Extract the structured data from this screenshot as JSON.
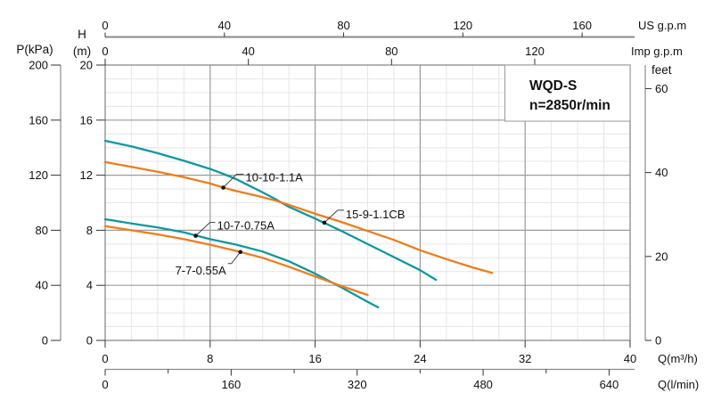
{
  "title_box": {
    "line1": "WQD-S",
    "line2": "n=2850r/min"
  },
  "axis_labels": {
    "p_unit": "P(kPa)",
    "h_letter": "H",
    "h_unit": "(m)",
    "us_gpm": "US g.p.m",
    "imp_gpm": "Imp g.p.m",
    "feet": "feet",
    "q_m3h": "Q(m³/h)",
    "q_lmin": "Q(l/min)"
  },
  "colors": {
    "teal": "#0e98a0",
    "orange": "#ee7d1b",
    "grid_minor": "#e6e6e6",
    "grid_major": "#9b9b9b",
    "axis_line": "#8a8a8a",
    "tick": "#333333",
    "text": "#111111",
    "leader": "#444444"
  },
  "chart_data": {
    "type": "line",
    "title": "WQD-S n=2850r/min",
    "xlim_m3h": [
      0,
      40
    ],
    "ylim_m": [
      0,
      20
    ],
    "grid": {
      "minor_x_step": 2,
      "major_x_step": 8,
      "minor_y_step": 1,
      "major_y_step": 4,
      "grid_on": true
    },
    "x_axes": [
      {
        "name": "US g.p.m",
        "ticks": [
          0,
          40,
          80,
          120,
          160
        ],
        "to_m3h": 0.227125
      },
      {
        "name": "Imp g.p.m",
        "ticks": [
          0,
          40,
          80,
          120
        ],
        "to_m3h": 0.272766
      },
      {
        "name": "Q(m³/h)",
        "ticks": [
          0,
          8,
          16,
          24,
          32,
          40
        ],
        "to_m3h": 1
      },
      {
        "name": "Q(l/min)",
        "ticks": [
          0,
          160,
          320,
          480,
          640
        ],
        "minor_ticks": [
          80,
          240,
          400,
          560
        ],
        "to_m3h": 0.06
      }
    ],
    "y_axes": [
      {
        "name": "P(kPa)",
        "ticks": [
          200,
          160,
          120,
          80,
          40,
          0
        ],
        "to_m": 0.1
      },
      {
        "name": "H(m)",
        "ticks": [
          20,
          16,
          12,
          8,
          4,
          0
        ],
        "to_m": 1
      },
      {
        "name": "feet",
        "ticks": [
          60,
          40,
          20,
          0
        ],
        "to_m": 0.3048
      }
    ],
    "series": [
      {
        "name": "15-9-1.1CB",
        "color_key": "teal",
        "points": [
          [
            0,
            14.5
          ],
          [
            2,
            14.1
          ],
          [
            4,
            13.6
          ],
          [
            6,
            13.05
          ],
          [
            8,
            12.45
          ],
          [
            9,
            12.1
          ],
          [
            10,
            11.7
          ],
          [
            12,
            10.75
          ],
          [
            13,
            10.25
          ],
          [
            14,
            9.7
          ],
          [
            16,
            8.85
          ],
          [
            17,
            8.4
          ],
          [
            18,
            7.95
          ],
          [
            20,
            7.0
          ],
          [
            22,
            6.05
          ],
          [
            24,
            5.1
          ],
          [
            25.2,
            4.4
          ]
        ]
      },
      {
        "name": "10-10-1.1A",
        "color_key": "orange",
        "points": [
          [
            0,
            12.95
          ],
          [
            2,
            12.6
          ],
          [
            4,
            12.25
          ],
          [
            6,
            11.85
          ],
          [
            8,
            11.4
          ],
          [
            9,
            11.1
          ],
          [
            10,
            10.85
          ],
          [
            12,
            10.4
          ],
          [
            13,
            10.15
          ],
          [
            14,
            9.85
          ],
          [
            16,
            9.2
          ],
          [
            18,
            8.6
          ],
          [
            20,
            7.95
          ],
          [
            22,
            7.3
          ],
          [
            24,
            6.55
          ],
          [
            26,
            5.9
          ],
          [
            28,
            5.3
          ],
          [
            29.5,
            4.9
          ]
        ]
      },
      {
        "name": "10-7-0.75A",
        "color_key": "teal",
        "points": [
          [
            0,
            8.8
          ],
          [
            2,
            8.5
          ],
          [
            4,
            8.2
          ],
          [
            6,
            7.85
          ],
          [
            8,
            7.35
          ],
          [
            10,
            6.95
          ],
          [
            12,
            6.45
          ],
          [
            14,
            5.75
          ],
          [
            16,
            4.85
          ],
          [
            18,
            3.85
          ],
          [
            20,
            2.8
          ],
          [
            20.8,
            2.4
          ]
        ]
      },
      {
        "name": "7-7-0.55A",
        "color_key": "orange",
        "points": [
          [
            0,
            8.3
          ],
          [
            2,
            8.0
          ],
          [
            4,
            7.7
          ],
          [
            6,
            7.35
          ],
          [
            8,
            6.95
          ],
          [
            10,
            6.5
          ],
          [
            12,
            6.0
          ],
          [
            14,
            5.35
          ],
          [
            16,
            4.65
          ],
          [
            18,
            3.95
          ],
          [
            20,
            3.3
          ]
        ]
      }
    ],
    "annotations": [
      {
        "label": "10-10-1.1A",
        "dot_q": 9.0,
        "dot_h": 11.1
      },
      {
        "label": "15-9-1.1CB",
        "dot_q": 16.7,
        "dot_h": 8.55
      },
      {
        "label": "10-7-0.75A",
        "dot_q": 6.9,
        "dot_h": 7.6
      },
      {
        "label": "7-7-0.55A",
        "dot_q": 10.3,
        "dot_h": 6.42
      }
    ]
  }
}
